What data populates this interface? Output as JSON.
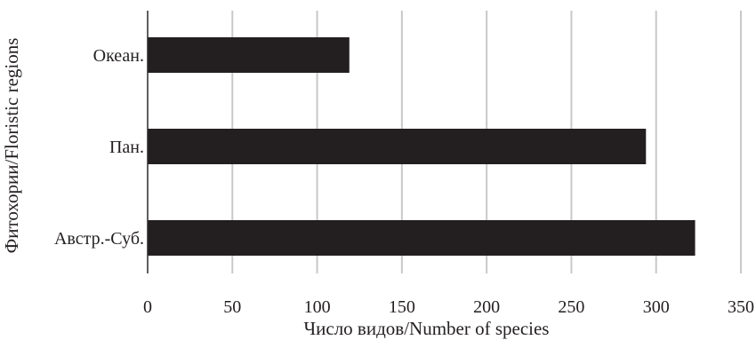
{
  "chart_data": {
    "type": "bar",
    "orientation": "horizontal",
    "categories": [
      "Океан.",
      "Пан.",
      "Австр.-Суб."
    ],
    "values": [
      119,
      294,
      323
    ],
    "xlabel": "Число видов/Number of species",
    "ylabel": "Фитохории/Floristic regions",
    "xlim": [
      0,
      350
    ],
    "xticks": [
      "0",
      "50",
      "100",
      "150",
      "200",
      "250",
      "300",
      "350"
    ],
    "grid": "vertical",
    "bar_color": "#231f20",
    "grid_color": "#c8c8c8"
  }
}
